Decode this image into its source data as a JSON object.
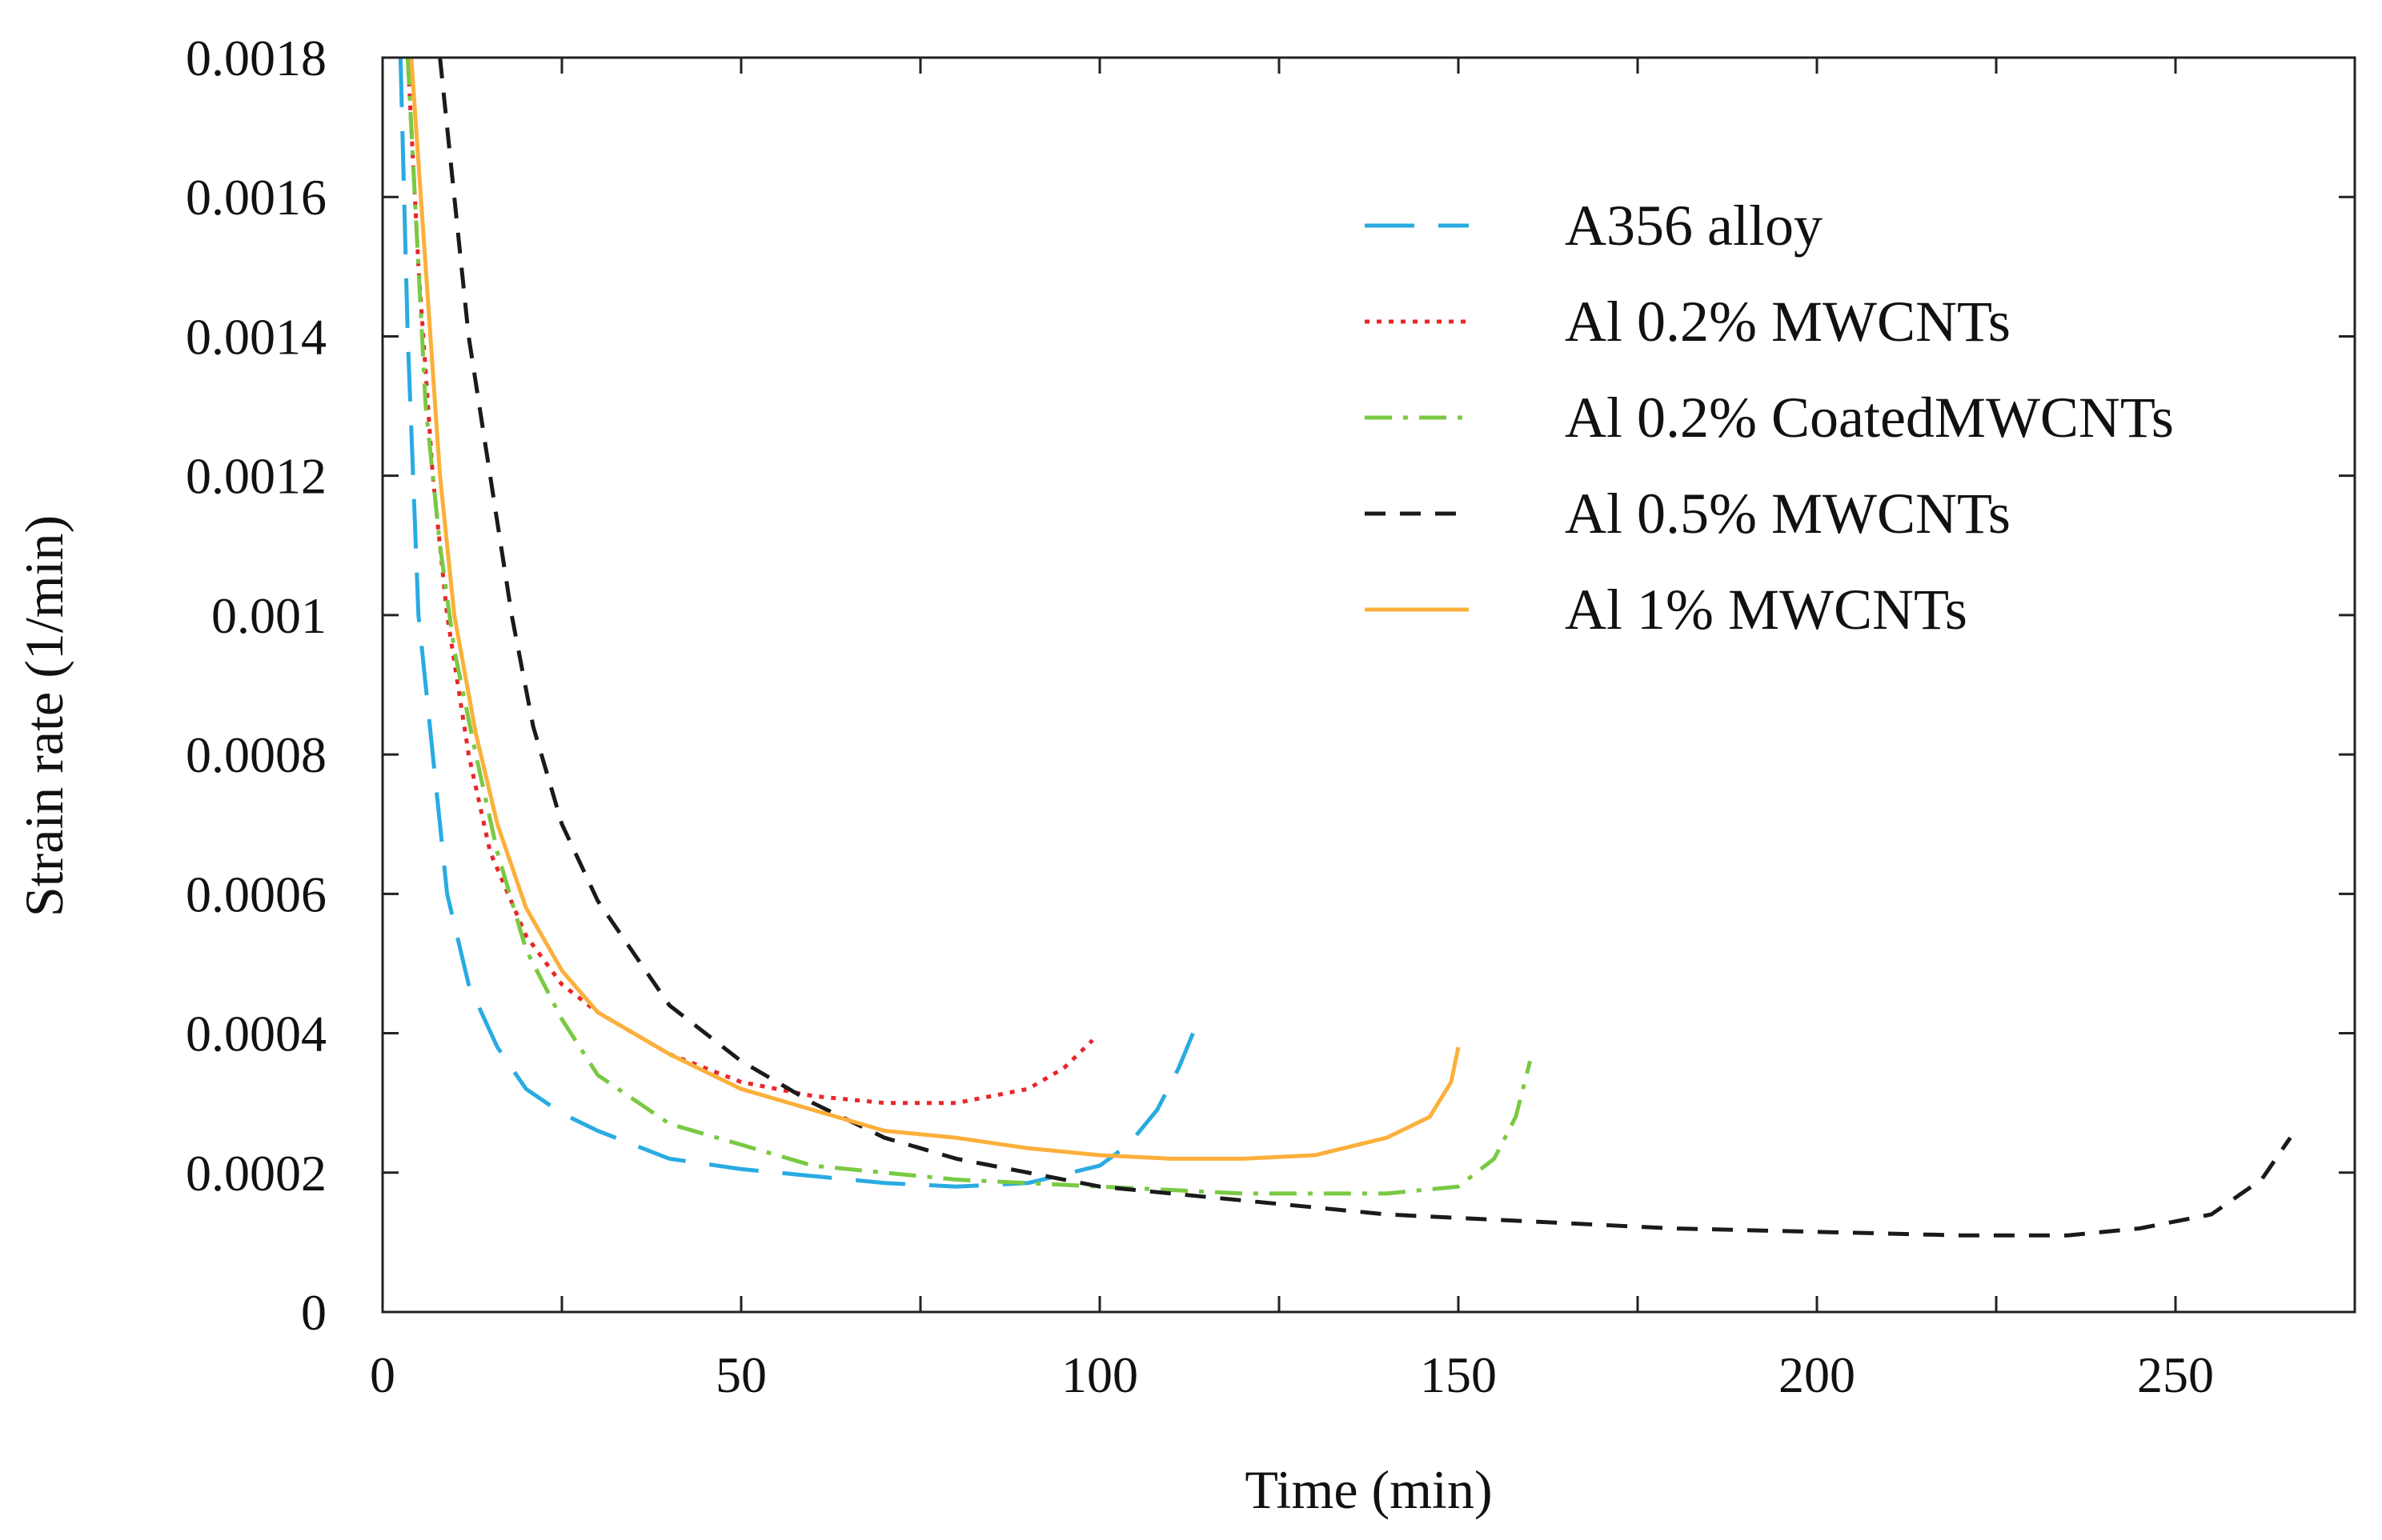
{
  "chart_data": {
    "type": "line",
    "title": "",
    "xlabel": "Time (min)",
    "ylabel": "Strain rate (1/min)",
    "xlim": [
      0,
      275
    ],
    "ylim": [
      0,
      0.0018
    ],
    "x_ticks": [
      0,
      50,
      100,
      150,
      200,
      250
    ],
    "x_tick_labels": [
      "0",
      "50",
      "100",
      "150",
      "200",
      "250"
    ],
    "y_ticks": [
      0,
      0.0002,
      0.0004,
      0.0006,
      0.0008,
      0.001,
      0.0012,
      0.0014,
      0.0016,
      0.0018
    ],
    "y_tick_labels": [
      "0",
      "0.0002",
      "0.0004",
      "0.0006",
      "0.0008",
      "0.001",
      "0.0012",
      "0.0014",
      "0.0016",
      "0.0018"
    ],
    "grid": false,
    "legend_position": "top-right",
    "series": [
      {
        "name": "A356 alloy",
        "color": "#29abe2",
        "dash": "dash-long",
        "points": [
          [
            2.5,
            0.0018
          ],
          [
            3.5,
            0.0014
          ],
          [
            5,
            0.001
          ],
          [
            7,
            0.0008
          ],
          [
            9,
            0.0006
          ],
          [
            12,
            0.00047
          ],
          [
            16,
            0.00038
          ],
          [
            20,
            0.00032
          ],
          [
            25,
            0.000285
          ],
          [
            30,
            0.00026
          ],
          [
            40,
            0.00022
          ],
          [
            50,
            0.000205
          ],
          [
            60,
            0.000195
          ],
          [
            70,
            0.000185
          ],
          [
            80,
            0.00018
          ],
          [
            90,
            0.000185
          ],
          [
            100,
            0.00021
          ],
          [
            104,
            0.00024
          ],
          [
            108,
            0.00029
          ],
          [
            111,
            0.00035
          ],
          [
            113,
            0.0004
          ]
        ]
      },
      {
        "name": "Al 0.2% MWCNTs",
        "color": "#e8272b",
        "dash": "dot",
        "points": [
          [
            3.5,
            0.0018
          ],
          [
            5,
            0.0015
          ],
          [
            7,
            0.0012
          ],
          [
            9,
            0.001
          ],
          [
            12,
            0.0008
          ],
          [
            15,
            0.00066
          ],
          [
            20,
            0.00054
          ],
          [
            25,
            0.00047
          ],
          [
            30,
            0.00043
          ],
          [
            40,
            0.00037
          ],
          [
            50,
            0.00033
          ],
          [
            60,
            0.00031
          ],
          [
            70,
            0.0003
          ],
          [
            80,
            0.0003
          ],
          [
            90,
            0.00032
          ],
          [
            95,
            0.00035
          ],
          [
            99,
            0.00039
          ]
        ]
      },
      {
        "name": "Al 0.2% CoatedMWCNTs",
        "color": "#7ac943",
        "dash": "dash-dot",
        "points": [
          [
            3.5,
            0.0018
          ],
          [
            4.5,
            0.0016
          ],
          [
            6,
            0.0013
          ],
          [
            8,
            0.0011
          ],
          [
            10,
            0.00095
          ],
          [
            13,
            0.0008
          ],
          [
            16,
            0.00066
          ],
          [
            20,
            0.00052
          ],
          [
            25,
            0.00042
          ],
          [
            30,
            0.00034
          ],
          [
            40,
            0.00027
          ],
          [
            50,
            0.00024
          ],
          [
            60,
            0.00021
          ],
          [
            70,
            0.0002
          ],
          [
            80,
            0.00019
          ],
          [
            100,
            0.00018
          ],
          [
            120,
            0.00017
          ],
          [
            140,
            0.00017
          ],
          [
            150,
            0.00018
          ],
          [
            155,
            0.00022
          ],
          [
            158,
            0.00028
          ],
          [
            160,
            0.00036
          ]
        ]
      },
      {
        "name": "Al 0.5% MWCNTs",
        "color": "#1a1a1a",
        "dash": "dash",
        "points": [
          [
            8,
            0.0018
          ],
          [
            10,
            0.0016
          ],
          [
            12,
            0.0014
          ],
          [
            15,
            0.0012
          ],
          [
            18,
            0.001
          ],
          [
            21,
            0.00084
          ],
          [
            25,
            0.0007
          ],
          [
            30,
            0.00059
          ],
          [
            40,
            0.00044
          ],
          [
            50,
            0.00036
          ],
          [
            60,
            0.0003
          ],
          [
            70,
            0.00025
          ],
          [
            80,
            0.00022
          ],
          [
            100,
            0.00018
          ],
          [
            120,
            0.00016
          ],
          [
            140,
            0.00014
          ],
          [
            160,
            0.00013
          ],
          [
            180,
            0.00012
          ],
          [
            200,
            0.000115
          ],
          [
            220,
            0.00011
          ],
          [
            235,
            0.00011
          ],
          [
            245,
            0.00012
          ],
          [
            255,
            0.00014
          ],
          [
            262,
            0.00019
          ],
          [
            266,
            0.00025
          ]
        ]
      },
      {
        "name": "Al 1% MWCNTs",
        "color": "#fbb03b",
        "dash": "solid",
        "points": [
          [
            4,
            0.0018
          ],
          [
            6,
            0.0015
          ],
          [
            8,
            0.0012
          ],
          [
            10,
            0.001
          ],
          [
            13,
            0.00083
          ],
          [
            16,
            0.0007
          ],
          [
            20,
            0.00058
          ],
          [
            25,
            0.00049
          ],
          [
            30,
            0.00043
          ],
          [
            40,
            0.00037
          ],
          [
            50,
            0.00032
          ],
          [
            60,
            0.00029
          ],
          [
            70,
            0.00026
          ],
          [
            80,
            0.00025
          ],
          [
            90,
            0.000235
          ],
          [
            100,
            0.000225
          ],
          [
            110,
            0.00022
          ],
          [
            120,
            0.00022
          ],
          [
            130,
            0.000225
          ],
          [
            140,
            0.00025
          ],
          [
            146,
            0.00028
          ],
          [
            149,
            0.00033
          ],
          [
            150,
            0.00038
          ]
        ]
      }
    ]
  }
}
